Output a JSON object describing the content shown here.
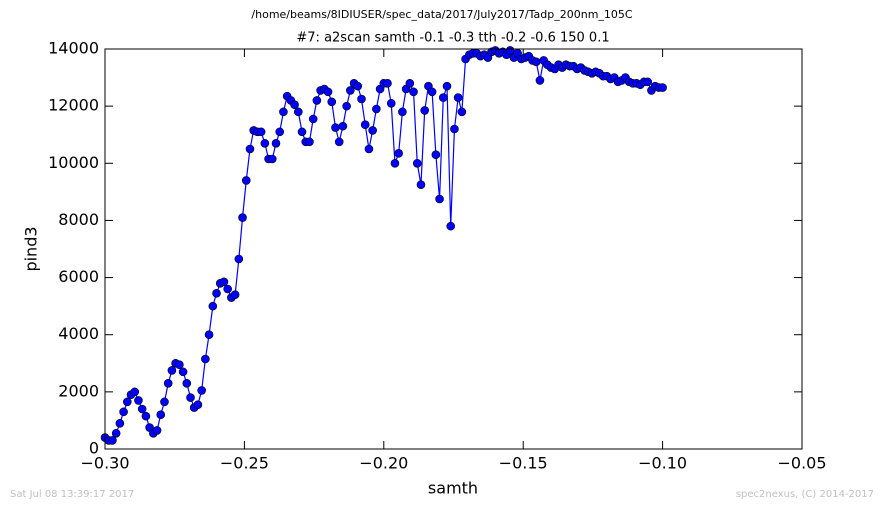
{
  "chart_data": {
    "type": "line",
    "suptitle": "/home/beams/8IDIUSER/spec_data/2017/July2017/Tadp_200nm_105C",
    "title": "#7: a2scan  samth -0.1 -0.3  tth -0.2 -0.6  150 0.1",
    "xlabel": "samth",
    "ylabel": "pind3",
    "footer_left": "Sat Jul 08 13:39:17 2017",
    "footer_right": "spec2nexus, (C) 2014-2017",
    "x": [
      -0.3,
      -0.29867,
      -0.29733,
      -0.296,
      -0.29467,
      -0.29333,
      -0.292,
      -0.29067,
      -0.28933,
      -0.288,
      -0.28667,
      -0.28533,
      -0.284,
      -0.28267,
      -0.28133,
      -0.28,
      -0.27867,
      -0.27733,
      -0.276,
      -0.27467,
      -0.27333,
      -0.272,
      -0.27067,
      -0.26933,
      -0.268,
      -0.26667,
      -0.26533,
      -0.264,
      -0.26267,
      -0.26133,
      -0.26,
      -0.25867,
      -0.25733,
      -0.256,
      -0.25467,
      -0.25333,
      -0.252,
      -0.25067,
      -0.24933,
      -0.248,
      -0.24667,
      -0.24533,
      -0.244,
      -0.24267,
      -0.24133,
      -0.24,
      -0.23867,
      -0.23733,
      -0.236,
      -0.23467,
      -0.23333,
      -0.232,
      -0.23067,
      -0.22933,
      -0.228,
      -0.22667,
      -0.22533,
      -0.224,
      -0.22267,
      -0.22133,
      -0.22,
      -0.21867,
      -0.21733,
      -0.216,
      -0.21467,
      -0.21333,
      -0.212,
      -0.21067,
      -0.20933,
      -0.208,
      -0.20667,
      -0.20533,
      -0.204,
      -0.20267,
      -0.20133,
      -0.2,
      -0.19867,
      -0.19733,
      -0.196,
      -0.19467,
      -0.19333,
      -0.192,
      -0.19067,
      -0.18933,
      -0.188,
      -0.18667,
      -0.18533,
      -0.184,
      -0.18267,
      -0.18133,
      -0.18,
      -0.17867,
      -0.17733,
      -0.176,
      -0.17467,
      -0.17333,
      -0.172,
      -0.17067,
      -0.16933,
      -0.168,
      -0.16667,
      -0.16533,
      -0.164,
      -0.16267,
      -0.16133,
      -0.16,
      -0.15867,
      -0.15733,
      -0.156,
      -0.15467,
      -0.15333,
      -0.152,
      -0.15067,
      -0.14933,
      -0.148,
      -0.14667,
      -0.14533,
      -0.144,
      -0.14267,
      -0.14133,
      -0.14,
      -0.13867,
      -0.13733,
      -0.136,
      -0.13467,
      -0.13333,
      -0.132,
      -0.13067,
      -0.12933,
      -0.128,
      -0.12667,
      -0.12533,
      -0.124,
      -0.12267,
      -0.12133,
      -0.12,
      -0.11867,
      -0.11733,
      -0.116,
      -0.11467,
      -0.11333,
      -0.112,
      -0.11067,
      -0.10933,
      -0.108,
      -0.10667,
      -0.10533,
      -0.104,
      -0.10267,
      -0.10133,
      -0.1
    ],
    "series": [
      {
        "name": "pind3",
        "color": "#0000ff",
        "values": [
          400,
          300,
          300,
          550,
          900,
          1300,
          1650,
          1900,
          2000,
          1700,
          1400,
          1150,
          750,
          550,
          650,
          1200,
          1650,
          2300,
          2750,
          3000,
          2950,
          2700,
          2300,
          1800,
          1450,
          1550,
          2050,
          3150,
          4000,
          5000,
          5450,
          5800,
          5850,
          5600,
          5300,
          5400,
          6650,
          8100,
          9400,
          10500,
          11150,
          11100,
          11100,
          10700,
          10150,
          10150,
          10700,
          11100,
          11800,
          12350,
          12200,
          12050,
          11800,
          11100,
          10750,
          10750,
          11550,
          12200,
          12550,
          12600,
          12500,
          12150,
          11250,
          10750,
          11300,
          12000,
          12550,
          12800,
          12700,
          12250,
          11350,
          10500,
          11150,
          11900,
          12600,
          12800,
          12800,
          12100,
          10000,
          10350,
          11800,
          12600,
          12800,
          12500,
          10000,
          9250,
          11850,
          12700,
          12500,
          10300,
          8750,
          12300,
          12700,
          7800,
          11200,
          12300,
          11800,
          13650,
          13800,
          13850,
          13850,
          13750,
          13800,
          13700,
          13900,
          13950,
          13850,
          13900,
          13800,
          13950,
          13700,
          13850,
          13650,
          13700,
          13750,
          13600,
          13550,
          12900,
          13600,
          13450,
          13350,
          13300,
          13450,
          13350,
          13450,
          13400,
          13400,
          13300,
          13350,
          13250,
          13200,
          13150,
          13200,
          13150,
          13050,
          13050,
          12950,
          13000,
          12850,
          12900,
          13000,
          12850,
          12800,
          12800,
          12750,
          12850,
          12850,
          12550,
          12700,
          12650,
          12650
        ]
      }
    ],
    "xlim": [
      -0.3,
      -0.05
    ],
    "xticks": [
      {
        "value": -0.3,
        "label": "−0.30"
      },
      {
        "value": -0.25,
        "label": "−0.25"
      },
      {
        "value": -0.2,
        "label": "−0.20"
      },
      {
        "value": -0.15,
        "label": "−0.15"
      },
      {
        "value": -0.1,
        "label": "−0.10"
      },
      {
        "value": -0.05,
        "label": "−0.05"
      }
    ],
    "ylim": [
      0,
      14000
    ],
    "yticks": [
      0,
      2000,
      4000,
      6000,
      8000,
      10000,
      12000,
      14000
    ],
    "grid": false
  }
}
